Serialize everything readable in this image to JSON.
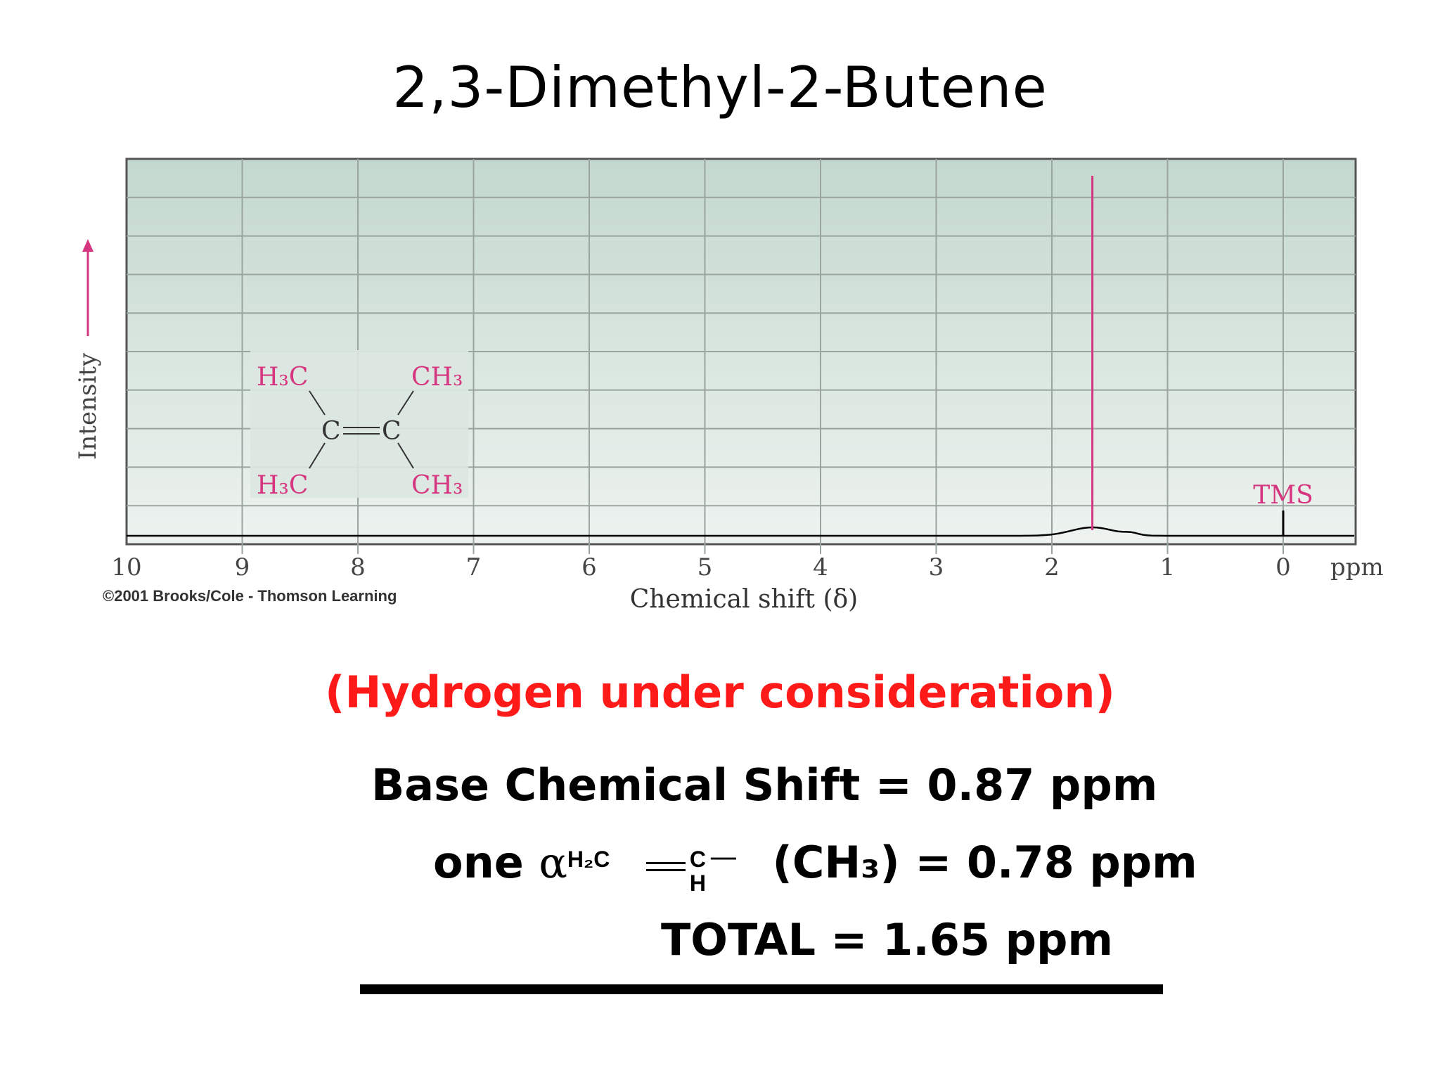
{
  "slide": {
    "title": "2,3-Dimethyl-2-Butene",
    "subtitle": "(Hydrogen under consideration)",
    "copyright": "©2001 Brooks/Cole - Thomson Learning",
    "calc": {
      "base_label": "Base Chemical Shift = 0.87 ppm",
      "one": "one",
      "alpha": "α",
      "frag_h2c": "H₂C",
      "frag_c": "C",
      "frag_h": "H",
      "frag_dash": "—",
      "ch3_value": "(CH₃) = 0.78 ppm",
      "total": "TOTAL =  1.65 ppm"
    }
  },
  "chart_data": {
    "type": "line",
    "xlabel": "Chemical shift (δ)",
    "ylabel": "Intensity",
    "x_unit": "ppm",
    "xlim": [
      10,
      0
    ],
    "x_reversed": true,
    "ticks": [
      10,
      9,
      8,
      7,
      6,
      5,
      4,
      3,
      2,
      1,
      0
    ],
    "grid": true,
    "peaks": [
      {
        "x": 1.65,
        "y": 1.0
      },
      {
        "x": 0.0,
        "y": 0.07,
        "label": "TMS"
      }
    ],
    "molecule": {
      "atoms": [
        "H3C",
        "CH3",
        "C",
        "C",
        "H3C",
        "CH3"
      ],
      "top_left": "H₃C",
      "top_right": "CH₃",
      "bottom_left": "H₃C",
      "bottom_right": "CH₃",
      "center_left": "C",
      "center_right": "C"
    },
    "colors": {
      "plot_background_top": "#c3d8ce",
      "plot_background_bottom": "#eef3f0",
      "grid": "#9aa59f",
      "peak": "#d6357f",
      "baseline": "#000000"
    }
  }
}
